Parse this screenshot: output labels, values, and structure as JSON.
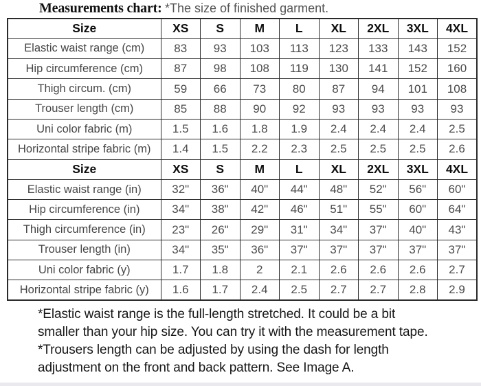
{
  "title": {
    "bold": "Measurements chart:",
    "note": "*The size of finished garment."
  },
  "chart_data": {
    "type": "table",
    "title": "Measurements chart: *The size of finished garment.",
    "columns": [
      "Size",
      "XS",
      "S",
      "M",
      "L",
      "XL",
      "2XL",
      "3XL",
      "4XL"
    ],
    "sections": [
      {
        "header": [
          "Size",
          "XS",
          "S",
          "M",
          "L",
          "XL",
          "2XL",
          "3XL",
          "4XL"
        ],
        "rows": [
          {
            "label": "Elastic waist range (cm)",
            "values": [
              "83",
              "93",
              "103",
              "113",
              "123",
              "133",
              "143",
              "152"
            ]
          },
          {
            "label": "Hip circumference (cm)",
            "values": [
              "87",
              "98",
              "108",
              "119",
              "130",
              "141",
              "152",
              "160"
            ]
          },
          {
            "label": "Thigh circum. (cm)",
            "values": [
              "59",
              "66",
              "73",
              "80",
              "87",
              "94",
              "101",
              "108"
            ]
          },
          {
            "label": "Trouser length (cm)",
            "values": [
              "85",
              "88",
              "90",
              "92",
              "93",
              "93",
              "93",
              "93"
            ]
          },
          {
            "label": "Uni color fabric (m)",
            "values": [
              "1.5",
              "1.6",
              "1.8",
              "1.9",
              "2.4",
              "2.4",
              "2.4",
              "2.5"
            ]
          },
          {
            "label": "Horizontal stripe fabric (m)",
            "values": [
              "1.4",
              "1.5",
              "2.2",
              "2.3",
              "2.5",
              "2.5",
              "2.5",
              "2.6"
            ]
          }
        ]
      },
      {
        "header": [
          "Size",
          "XS",
          "S",
          "M",
          "L",
          "XL",
          "2XL",
          "3XL",
          "4XL"
        ],
        "rows": [
          {
            "label": "Elastic waist range (in)",
            "values": [
              "32\"",
              "36\"",
              "40\"",
              "44\"",
              "48\"",
              "52\"",
              "56\"",
              "60\""
            ]
          },
          {
            "label": "Hip circumference (in)",
            "values": [
              "34\"",
              "38\"",
              "42\"",
              "46\"",
              "51\"",
              "55\"",
              "60\"",
              "64\""
            ]
          },
          {
            "label": "Thigh circumference (in)",
            "values": [
              "23\"",
              "26\"",
              "29\"",
              "31\"",
              "34\"",
              "37\"",
              "40\"",
              "43\""
            ]
          },
          {
            "label": "Trouser length (in)",
            "values": [
              "34\"",
              "35\"",
              "36\"",
              "37\"",
              "37\"",
              "37\"",
              "37\"",
              "37\""
            ]
          },
          {
            "label": "Uni color fabric (y)",
            "values": [
              "1.7",
              "1.8",
              "2",
              "2.1",
              "2.6",
              "2.6",
              "2.6",
              "2.7"
            ]
          },
          {
            "label": "Horizontal stripe fabric (y)",
            "values": [
              "1.6",
              "1.7",
              "2.4",
              "2.5",
              "2.7",
              "2.7",
              "2.8",
              "2.9"
            ]
          }
        ]
      }
    ]
  },
  "footnotes": {
    "lines": [
      "*Elastic waist range is the full-length stretched. It could be a bit",
      "smaller than your hip size. You can try it with the measurement tape.",
      "*Trousers length can be adjusted by using the dash for length",
      "adjustment on the front and back pattern. See Image A."
    ]
  },
  "colors": {
    "background": "#ffffff",
    "table_border": "#2a2a2a",
    "header_text": "#0d0d0d",
    "data_text": "#4a4a4a",
    "title_note_text": "#555555",
    "footnote_text": "#161616",
    "bottom_strip": "#e9e9ee"
  }
}
